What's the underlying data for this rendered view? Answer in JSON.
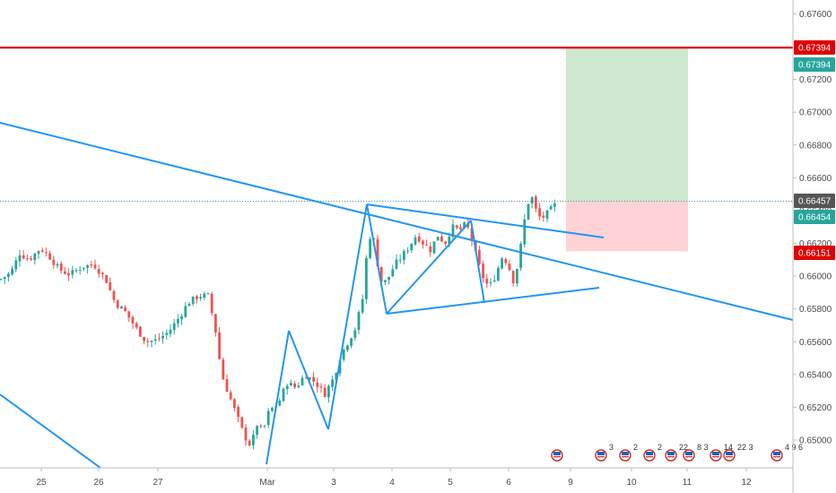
{
  "chart_data": {
    "type": "candlestick",
    "title": "",
    "xlabel": "",
    "ylabel": "",
    "ylim": [
      0.6485,
      0.6772
    ],
    "x_ticks": [
      "25",
      "26",
      "27",
      "Mar",
      "3",
      "4",
      "5",
      "6",
      "9",
      "10",
      "11",
      "12"
    ],
    "y_ticks": [
      "0.67600",
      "0.67400",
      "0.67200",
      "0.67000",
      "0.66800",
      "0.66600",
      "0.66400",
      "0.66200",
      "0.66000",
      "0.65800",
      "0.65600",
      "0.65400",
      "0.65200",
      "0.65000"
    ],
    "price_labels": {
      "take_profit_line": "0.67394",
      "take_profit": "0.67394",
      "entry": "0.66457",
      "last_price": "0.66454",
      "stop_loss": "0.66151"
    },
    "colors": {
      "up": "#26a69a",
      "down": "#ef5350",
      "trendline": "#2196f3",
      "horizontal_line": "#e00000",
      "profit_zone": "#c8e6c9",
      "loss_zone": "#ffcdd2",
      "entry_badge": "#555555",
      "last_badge": "#26a69a",
      "tp_badge": "#e00000",
      "tp_zone_badge": "#26a69a",
      "sl_badge": "#e00000"
    },
    "grid": false,
    "economic_events": [
      {
        "text": ""
      },
      {
        "text": "3"
      },
      {
        "text": "2"
      },
      {
        "text": "2"
      },
      {
        "text": "22"
      },
      {
        "text": "8 3"
      },
      {
        "text": "14"
      },
      {
        "text": "22 3"
      },
      {
        "text": "4 9 6"
      }
    ]
  }
}
